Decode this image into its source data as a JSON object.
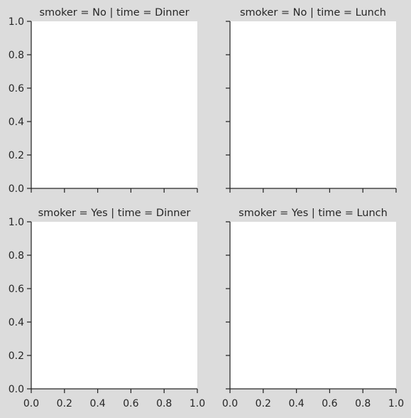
{
  "chart_data": [
    {
      "type": "scatter",
      "title": "smoker = No | time = Dinner",
      "xlim": [
        0,
        1
      ],
      "ylim": [
        0,
        1
      ],
      "xticks": [
        "0.0",
        "0.2",
        "0.4",
        "0.6",
        "0.8",
        "1.0"
      ],
      "yticks": [
        "0.0",
        "0.2",
        "0.4",
        "0.6",
        "0.8",
        "1.0"
      ],
      "show_xticklabels": false,
      "show_yticklabels": true,
      "series": []
    },
    {
      "type": "scatter",
      "title": "smoker = No | time = Lunch",
      "xlim": [
        0,
        1
      ],
      "ylim": [
        0,
        1
      ],
      "xticks": [
        "0.0",
        "0.2",
        "0.4",
        "0.6",
        "0.8",
        "1.0"
      ],
      "yticks": [
        "0.0",
        "0.2",
        "0.4",
        "0.6",
        "0.8",
        "1.0"
      ],
      "show_xticklabels": false,
      "show_yticklabels": false,
      "series": []
    },
    {
      "type": "scatter",
      "title": "smoker = Yes | time = Dinner",
      "xlim": [
        0,
        1
      ],
      "ylim": [
        0,
        1
      ],
      "xticks": [
        "0.0",
        "0.2",
        "0.4",
        "0.6",
        "0.8",
        "1.0"
      ],
      "yticks": [
        "0.0",
        "0.2",
        "0.4",
        "0.6",
        "0.8",
        "1.0"
      ],
      "show_xticklabels": true,
      "show_yticklabels": true,
      "series": []
    },
    {
      "type": "scatter",
      "title": "smoker = Yes | time = Lunch",
      "xlim": [
        0,
        1
      ],
      "ylim": [
        0,
        1
      ],
      "xticks": [
        "0.0",
        "0.2",
        "0.4",
        "0.6",
        "0.8",
        "1.0"
      ],
      "yticks": [
        "0.0",
        "0.2",
        "0.4",
        "0.6",
        "0.8",
        "1.0"
      ],
      "show_xticklabels": true,
      "show_yticklabels": false,
      "series": []
    }
  ],
  "colors": {
    "figure_background": "#dcdcdc",
    "axes_background": "#ffffff",
    "axis_color": "#262626"
  }
}
